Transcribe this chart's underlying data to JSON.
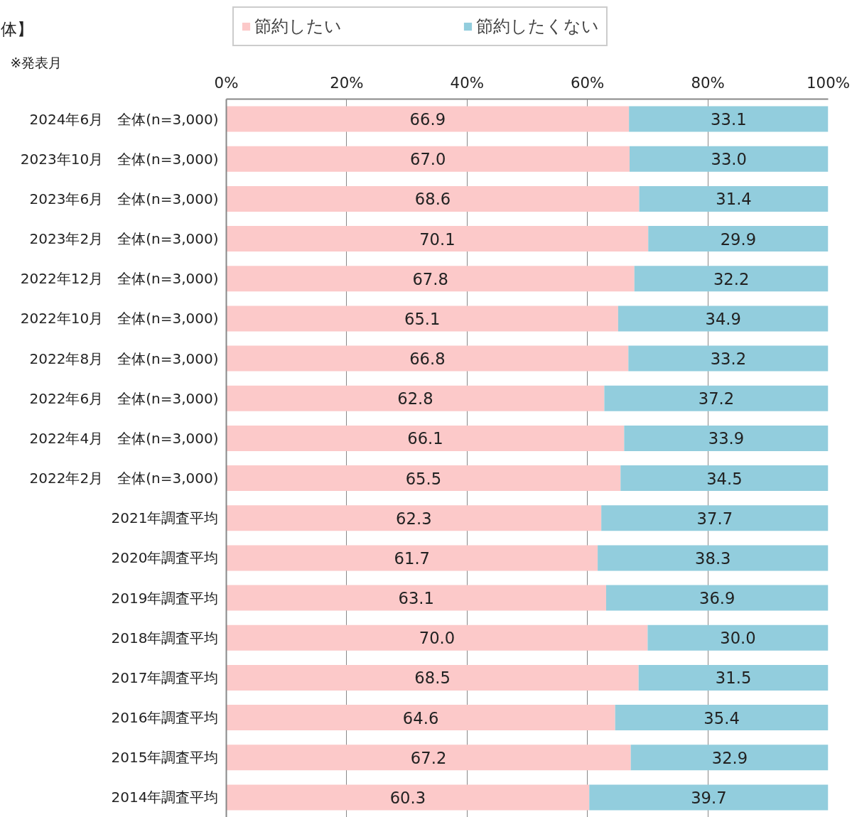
{
  "chart_data": {
    "type": "bar",
    "orientation": "horizontal",
    "stacked": true,
    "title": "体】",
    "annotations": [
      "※発表月"
    ],
    "categories": [
      "2024年6月　全体(n=3,000)",
      "2023年10月　全体(n=3,000)",
      "2023年6月　全体(n=3,000)",
      "2023年2月　全体(n=3,000)",
      "2022年12月　全体(n=3,000)",
      "2022年10月　全体(n=3,000)",
      "2022年8月　全体(n=3,000)",
      "2022年6月　全体(n=3,000)",
      "2022年4月　全体(n=3,000)",
      "2022年2月　全体(n=3,000)",
      "2021年調査平均",
      "2020年調査平均",
      "2019年調査平均",
      "2018年調査平均",
      "2017年調査平均",
      "2016年調査平均",
      "2015年調査平均",
      "2014年調査平均"
    ],
    "series": [
      {
        "name": "節約したい",
        "color": "#fcc9c9",
        "values": [
          66.9,
          67.0,
          68.6,
          70.1,
          67.8,
          65.1,
          66.8,
          62.8,
          66.1,
          65.5,
          62.3,
          61.7,
          63.1,
          70.0,
          68.5,
          64.6,
          67.2,
          60.3
        ],
        "value_labels": [
          "66.9",
          "67.0",
          "68.6",
          "70.1",
          "67.8",
          "65.1",
          "66.8",
          "62.8",
          "66.1",
          "65.5",
          "62.3",
          "61.7",
          "63.1",
          "70.0",
          "68.5",
          "64.6",
          "67.2",
          "60.3"
        ]
      },
      {
        "name": "節約したくない",
        "color": "#92cddd",
        "values": [
          33.1,
          33.0,
          31.4,
          29.9,
          32.2,
          34.9,
          33.2,
          37.2,
          33.9,
          34.5,
          37.7,
          38.3,
          36.9,
          30.0,
          31.5,
          35.4,
          32.9,
          39.7
        ],
        "value_labels": [
          "33.1",
          "33.0",
          "31.4",
          "29.9",
          "32.2",
          "34.9",
          "33.2",
          "37.2",
          "33.9",
          "34.5",
          "37.7",
          "38.3",
          "36.9",
          "30.0",
          "31.5",
          "35.4",
          "32.9",
          "39.7"
        ]
      }
    ],
    "xlim": [
      0,
      100
    ],
    "xticks": [
      {
        "value": 0,
        "label": "0%"
      },
      {
        "value": 20,
        "label": "20%"
      },
      {
        "value": 40,
        "label": "40%"
      },
      {
        "value": 60,
        "label": "60%"
      },
      {
        "value": 80,
        "label": "80%"
      },
      {
        "value": 100,
        "label": "100%"
      }
    ],
    "grid": "x",
    "legend": "top",
    "data_labels": true
  }
}
